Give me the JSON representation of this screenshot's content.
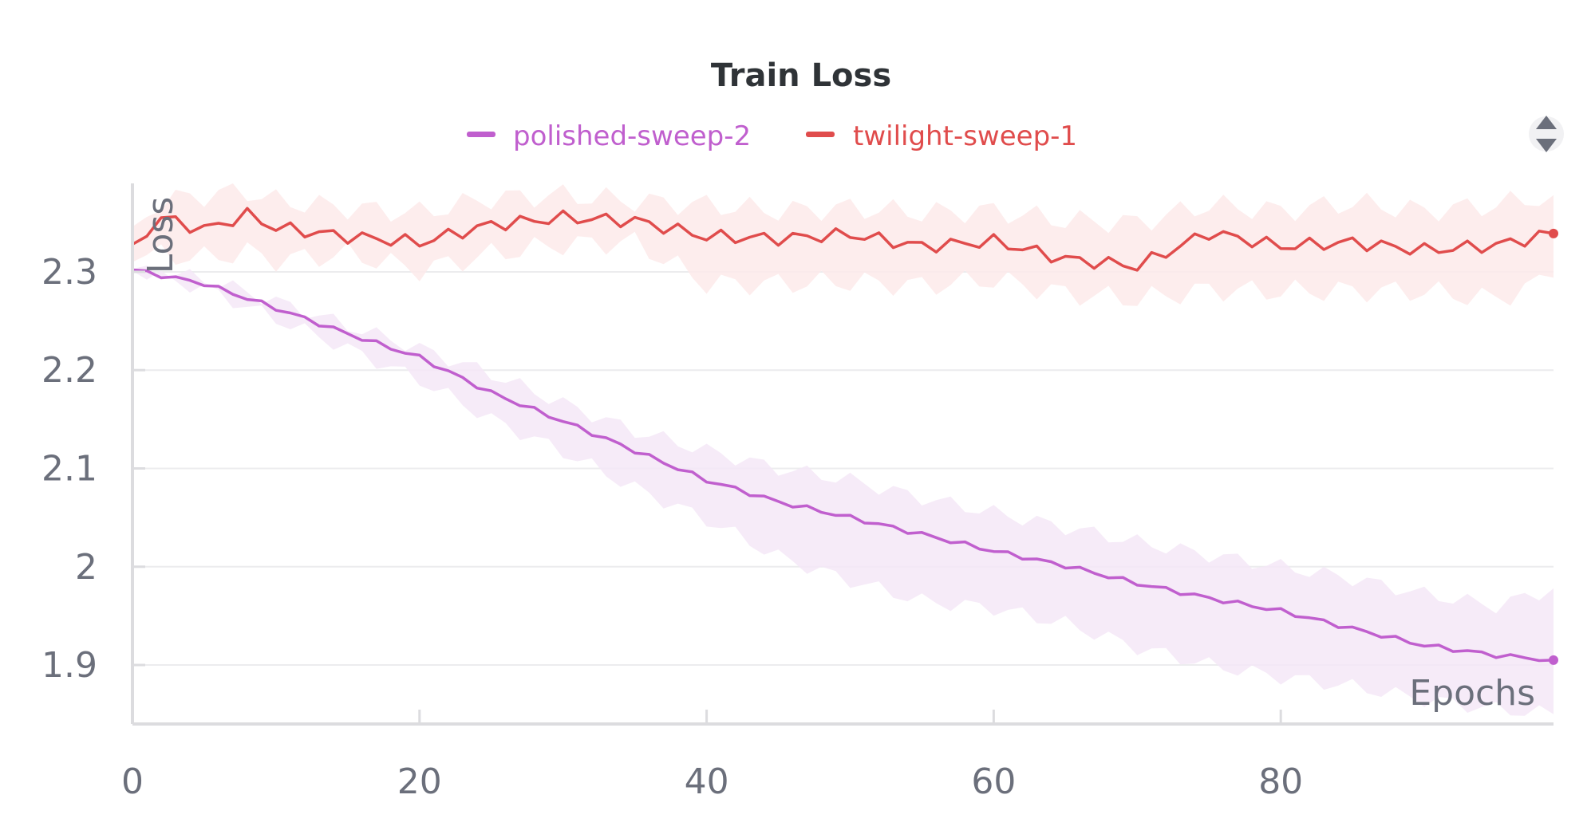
{
  "chart_data": {
    "type": "line",
    "title": "Train Loss",
    "xlabel": "Epochs",
    "ylabel": "Loss",
    "xlim": [
      0,
      99
    ],
    "ylim": [
      1.84,
      2.39
    ],
    "x_ticks": [
      "0",
      "20",
      "40",
      "60",
      "80"
    ],
    "x_tick_values": [
      0,
      20,
      40,
      60,
      80
    ],
    "y_ticks": [
      "1.9",
      "2",
      "2.1",
      "2.2",
      "2.3"
    ],
    "y_tick_values": [
      1.9,
      2.0,
      2.1,
      2.2,
      2.3
    ],
    "grid": true,
    "legend_position": "top",
    "series": [
      {
        "name": "polished-sweep-2",
        "color": "#c05fce",
        "band_color": "#f5e8f7",
        "x": [
          0,
          5,
          10,
          15,
          20,
          25,
          30,
          35,
          40,
          45,
          50,
          55,
          60,
          65,
          70,
          75,
          80,
          85,
          90,
          95,
          99
        ],
        "values": [
          2.302,
          2.288,
          2.263,
          2.237,
          2.213,
          2.177,
          2.148,
          2.118,
          2.088,
          2.066,
          2.05,
          2.033,
          2.016,
          2.001,
          1.983,
          1.968,
          1.955,
          1.937,
          1.92,
          1.91,
          1.905
        ],
        "band_upper": [
          2.303,
          2.293,
          2.27,
          2.245,
          2.222,
          2.196,
          2.166,
          2.138,
          2.118,
          2.1,
          2.088,
          2.07,
          2.055,
          2.04,
          2.025,
          2.012,
          2.0,
          1.988,
          1.972,
          1.96,
          1.978
        ],
        "band_lower": [
          2.301,
          2.283,
          2.252,
          2.222,
          2.19,
          2.15,
          2.117,
          2.08,
          2.048,
          2.01,
          1.986,
          1.965,
          1.958,
          1.942,
          1.918,
          1.9,
          1.888,
          1.878,
          1.865,
          1.855,
          1.85
        ]
      },
      {
        "name": "twilight-sweep-1",
        "color": "#e04c4c",
        "band_color": "#fdeaea",
        "x": [
          0,
          2,
          5,
          8,
          10,
          15,
          20,
          25,
          30,
          35,
          40,
          45,
          50,
          55,
          60,
          65,
          70,
          75,
          80,
          85,
          90,
          95,
          99
        ],
        "values": [
          2.328,
          2.355,
          2.343,
          2.358,
          2.345,
          2.336,
          2.33,
          2.348,
          2.355,
          2.352,
          2.336,
          2.334,
          2.338,
          2.326,
          2.331,
          2.313,
          2.306,
          2.34,
          2.326,
          2.33,
          2.322,
          2.327,
          2.339
        ],
        "band_upper": [
          2.346,
          2.372,
          2.378,
          2.382,
          2.372,
          2.365,
          2.36,
          2.375,
          2.378,
          2.372,
          2.368,
          2.362,
          2.365,
          2.36,
          2.362,
          2.352,
          2.35,
          2.368,
          2.362,
          2.37,
          2.362,
          2.368,
          2.378
        ],
        "band_lower": [
          2.31,
          2.318,
          2.314,
          2.32,
          2.312,
          2.318,
          2.302,
          2.318,
          2.328,
          2.33,
          2.288,
          2.288,
          2.29,
          2.286,
          2.292,
          2.278,
          2.272,
          2.282,
          2.28,
          2.281,
          2.28,
          2.272,
          2.294
        ]
      }
    ]
  }
}
